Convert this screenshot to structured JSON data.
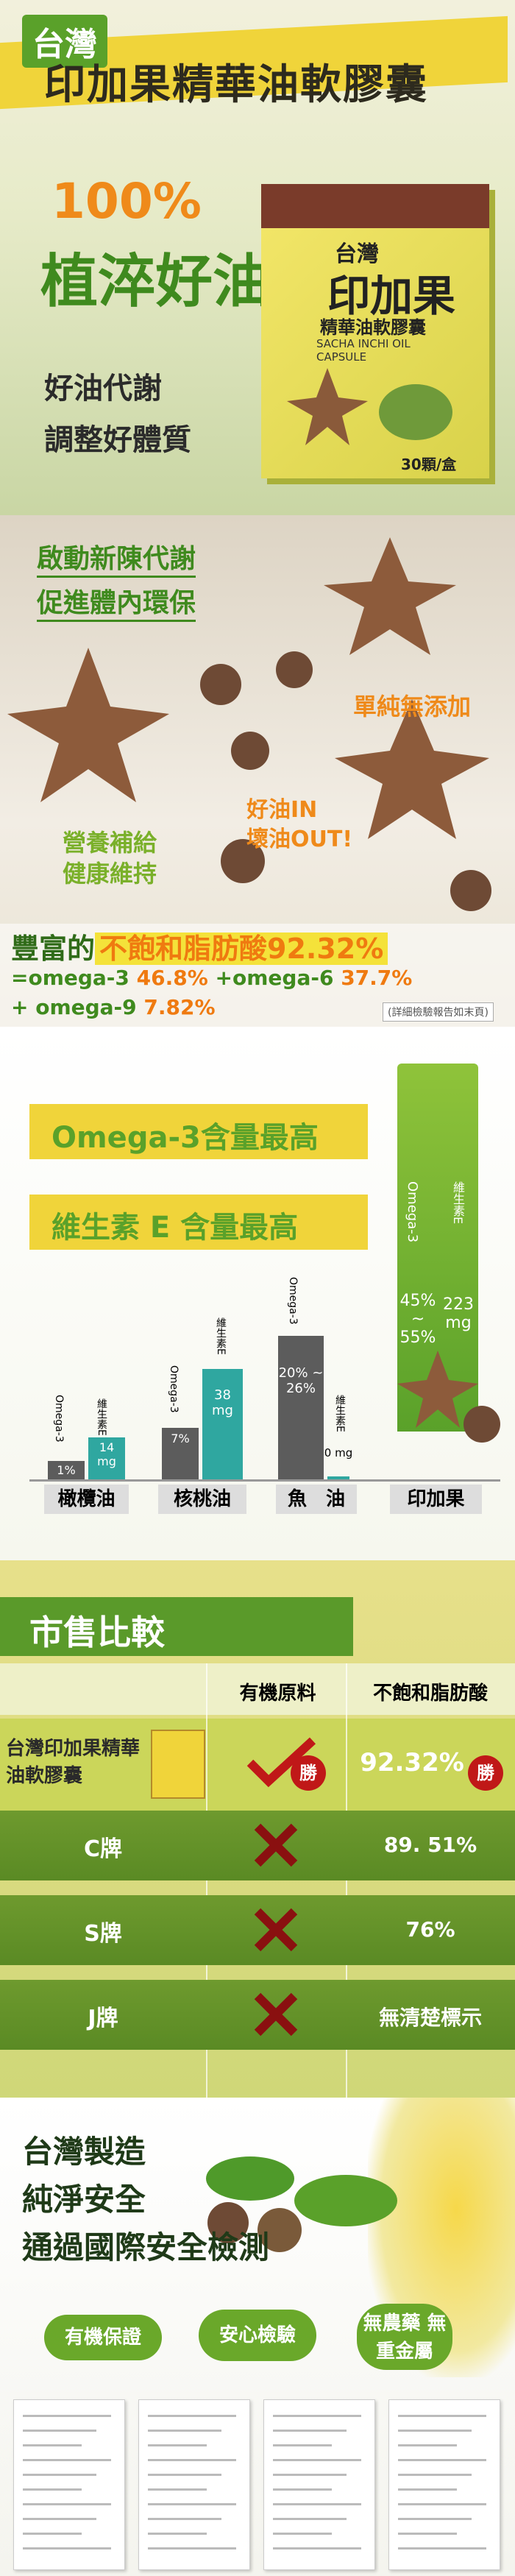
{
  "hero": {
    "tag": "台灣",
    "title": "印加果精華油軟膠囊",
    "percent": "100%",
    "slogan": "植淬好油",
    "lines": [
      "好油代謝",
      "調整好體質"
    ],
    "box": {
      "brand": "台灣",
      "name": "印加果",
      "sub": "精華油軟膠囊",
      "en": "SACHA INCHI OIL CAPSULE",
      "count": "30顆/盒"
    }
  },
  "benefits": {
    "items": [
      "啟動新陳代謝",
      "促進體內環保"
    ],
    "pure": "單純無添加",
    "oil": [
      "好油IN",
      "壞油OUT!"
    ],
    "nutri": [
      "營養補給",
      "健康維持"
    ],
    "headline": {
      "lead": "豐富的",
      "main": "不飽和脂肪酸92.32%"
    },
    "omega": [
      {
        "name": "=omega-3",
        "value": "46.8%"
      },
      {
        "name": "+omega-6",
        "value": "37.7%"
      },
      {
        "name": "+ omega-9",
        "value": "7.82%"
      }
    ],
    "note": "(詳細檢驗報告如末頁)"
  },
  "compare": {
    "banners": [
      "Omega-3含量最高",
      "維生素 E 含量最高"
    ],
    "legend": [
      "Omega-3",
      "維生素E"
    ],
    "oils": [
      {
        "name": "橄欖油",
        "omega3": "1%",
        "vitE": "14 mg"
      },
      {
        "name": "核桃油",
        "omega3": "7%",
        "vitE": "38 mg"
      },
      {
        "name": "魚　油",
        "omega3": "20% ~ 26%",
        "vitE": "0 mg"
      },
      {
        "name": "印加果",
        "omega3": "45% ~ 55%",
        "vitE": "223 mg"
      }
    ]
  },
  "market": {
    "title": "市售比較",
    "headers": [
      "有機原料",
      "不飽和脂肪酸"
    ],
    "win": "勝",
    "rows": [
      {
        "name": "台灣印加果精華油軟膠囊",
        "value": "92.32%"
      },
      {
        "name": "C牌",
        "value": "89. 51%"
      },
      {
        "name": "S牌",
        "value": "76%"
      },
      {
        "name": "J牌",
        "value": "無清楚標示"
      }
    ]
  },
  "safety": {
    "lines": [
      "台灣製造",
      "純淨安全",
      "通過國際安全檢測"
    ],
    "badges": [
      "有機保證",
      "安心檢驗",
      "無農藥 無重金屬"
    ]
  }
}
